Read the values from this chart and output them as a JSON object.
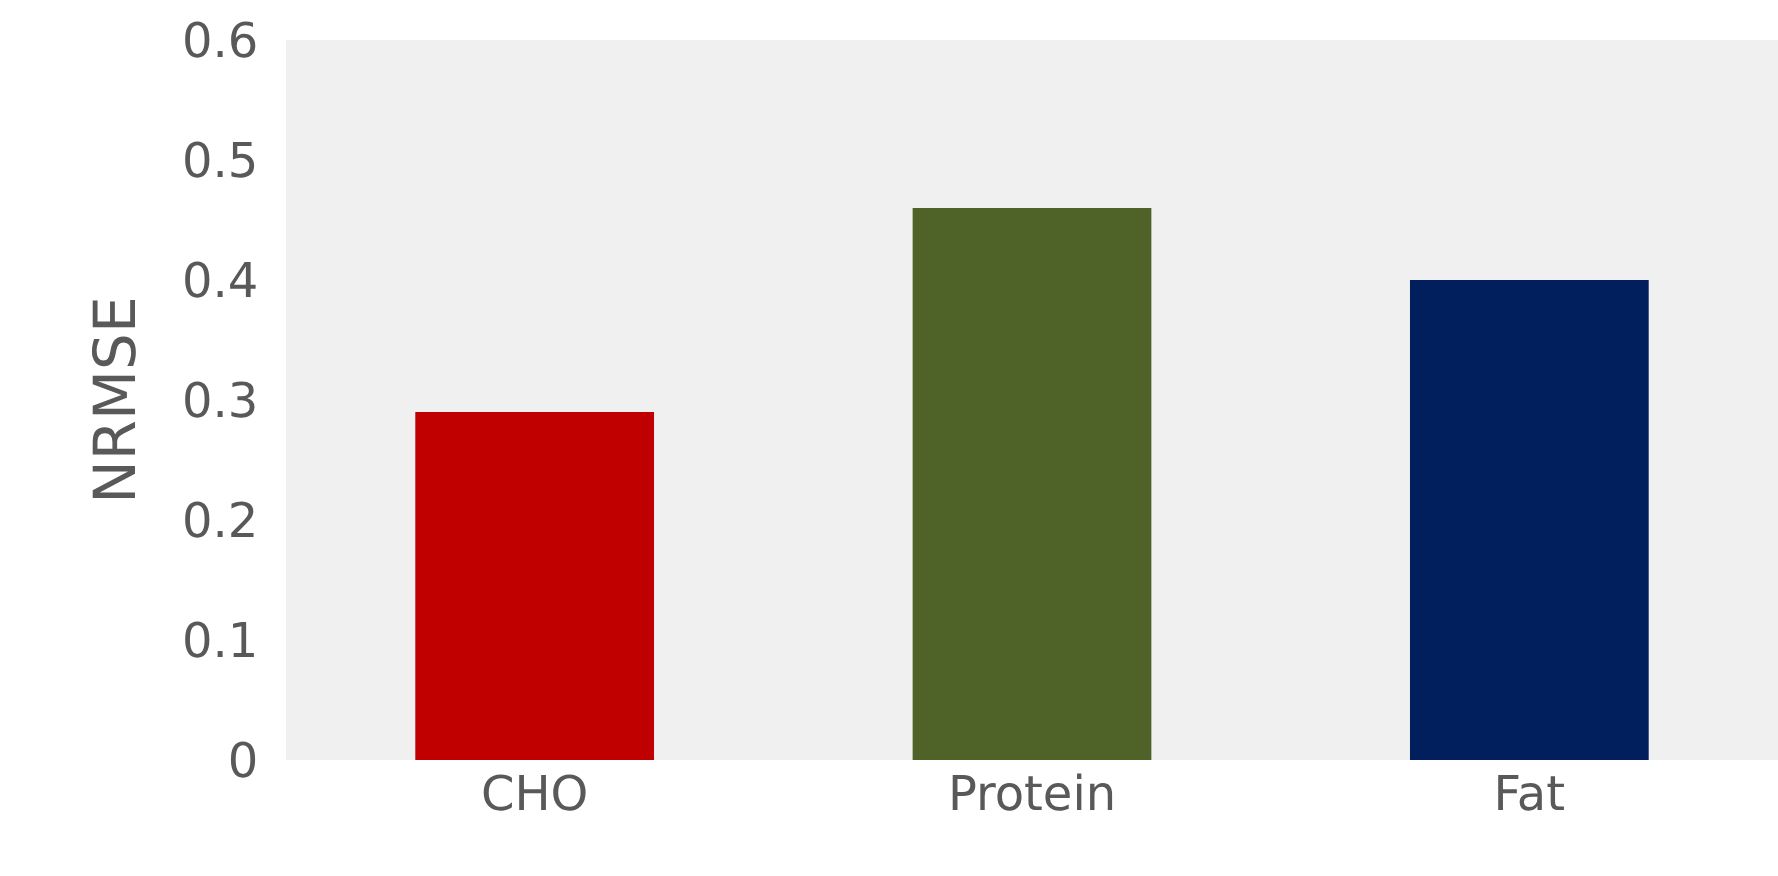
{
  "chart_data": {
    "type": "bar",
    "ylabel": "NRMSE",
    "categories": [
      "CHO",
      "Protein",
      "Fat"
    ],
    "values": [
      0.29,
      0.46,
      0.4
    ],
    "colors": [
      "#c00000",
      "#4f6228",
      "#001f5c"
    ],
    "ylim": [
      0,
      0.6
    ],
    "yticks": [
      0,
      0.1,
      0.2,
      0.3,
      0.4,
      0.5,
      0.6
    ],
    "grid": false
  }
}
